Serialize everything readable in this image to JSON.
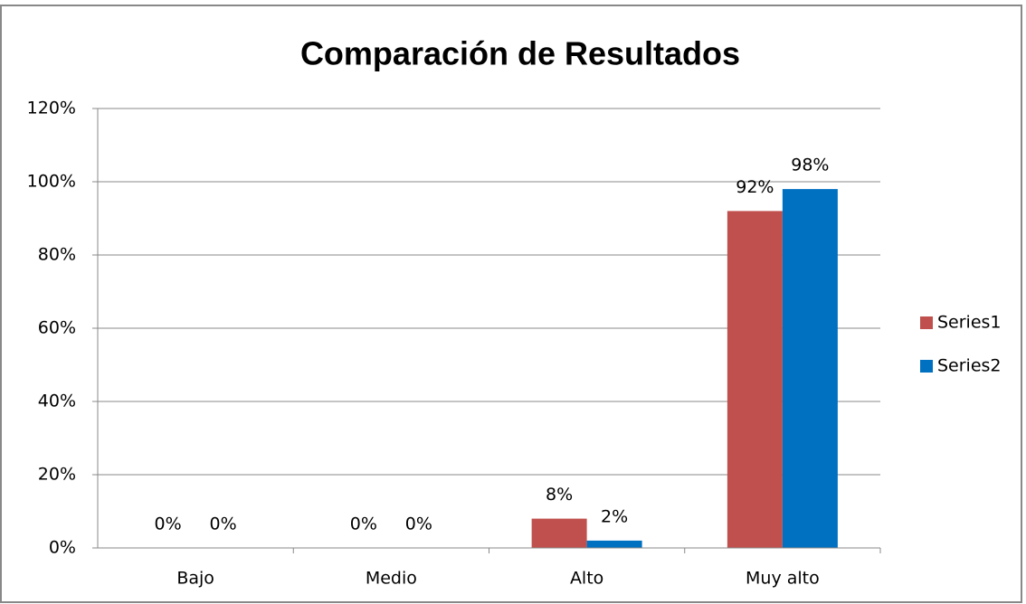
{
  "chart_data": {
    "type": "bar",
    "title": "Comparación de Resultados",
    "categories": [
      "Bajo",
      "Medio",
      "Alto",
      "Muy alto"
    ],
    "series": [
      {
        "name": "Series1",
        "color": "#c0504d",
        "values": [
          0,
          0,
          8,
          92
        ],
        "value_labels": [
          "0%",
          "0%",
          "8%",
          "92%"
        ]
      },
      {
        "name": "Series2",
        "color": "#0070c0",
        "values": [
          0,
          0,
          2,
          98
        ],
        "value_labels": [
          "0%",
          "0%",
          "2%",
          "98%"
        ]
      }
    ],
    "ylim": [
      0,
      120
    ],
    "yticks": [
      {
        "value": 0,
        "label": "0%"
      },
      {
        "value": 20,
        "label": "20%"
      },
      {
        "value": 40,
        "label": "40%"
      },
      {
        "value": 60,
        "label": "60%"
      },
      {
        "value": 80,
        "label": "80%"
      },
      {
        "value": 100,
        "label": "100%"
      },
      {
        "value": 120,
        "label": "120%"
      }
    ],
    "grid": true,
    "legend": "right"
  }
}
